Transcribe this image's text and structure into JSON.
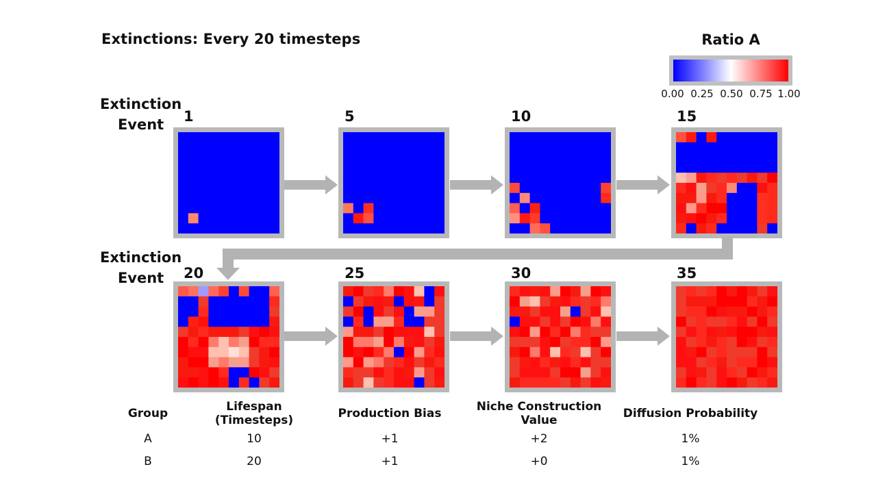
{
  "title": "Extinctions: Every 20 timesteps",
  "legend": {
    "title": "Ratio A",
    "ticks": [
      "0.00",
      "0.25",
      "0.50",
      "0.75",
      "1.00"
    ],
    "colors": {
      "low": "#0000ff",
      "mid": "#ffffff",
      "high": "#ff0000"
    }
  },
  "row_labels": {
    "top": [
      "Extinction",
      "Event"
    ],
    "bottom": [
      "Extinction",
      "Event"
    ]
  },
  "events": [
    "1",
    "5",
    "10",
    "15",
    "20",
    "25",
    "30",
    "35"
  ],
  "table": {
    "headers": [
      "Group",
      "Lifespan (Timesteps)",
      "Production Bias",
      "Niche Construction Value",
      "Diffusion Probability"
    ],
    "rows": [
      [
        "A",
        "10",
        "+1",
        "+2",
        "1%"
      ],
      [
        "B",
        "20",
        "+1",
        "+0",
        "1%"
      ]
    ]
  }
}
